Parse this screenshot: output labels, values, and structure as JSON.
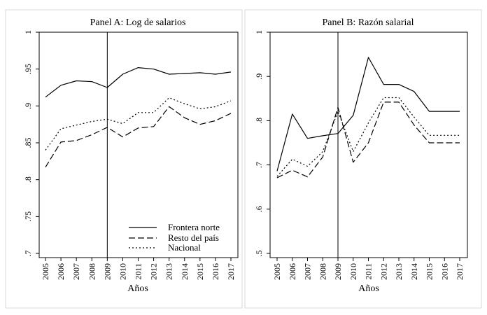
{
  "chart_data": [
    {
      "type": "line",
      "title": "Panel A: Log de salarios",
      "xlabel": "Años",
      "ylabel": "",
      "x": [
        "2005",
        "2006",
        "2007",
        "2008",
        "2009",
        "2010",
        "2011",
        "2012",
        "2013",
        "2014",
        "2015",
        "2016",
        "2017"
      ],
      "yticks": [
        ".7",
        ".75",
        ".8",
        ".85",
        ".9",
        ".95",
        "1"
      ],
      "ylim": [
        0.7,
        1.0
      ],
      "vline_x": "2009",
      "legend_position": "bottom-right",
      "series": [
        {
          "name": "Frontera norte",
          "style": "solid",
          "values": [
            0.912,
            0.928,
            0.934,
            0.933,
            0.925,
            0.943,
            0.952,
            0.95,
            0.943,
            0.944,
            0.945,
            0.943,
            0.946
          ]
        },
        {
          "name": "Resto del país",
          "style": "dashed",
          "values": [
            0.817,
            0.851,
            0.853,
            0.861,
            0.871,
            0.858,
            0.87,
            0.872,
            0.899,
            0.884,
            0.875,
            0.88,
            0.89
          ]
        },
        {
          "name": "Nacional",
          "style": "dotted",
          "values": [
            0.84,
            0.869,
            0.874,
            0.879,
            0.882,
            0.876,
            0.891,
            0.891,
            0.911,
            0.903,
            0.896,
            0.899,
            0.907
          ]
        }
      ]
    },
    {
      "type": "line",
      "title": "Panel B: Razón salarial",
      "xlabel": "Años",
      "ylabel": "",
      "x": [
        "2005",
        "2006",
        "2007",
        "2008",
        "2009",
        "2010",
        "2011",
        "2012",
        "2013",
        "2014",
        "2015",
        "2016",
        "2017"
      ],
      "yticks": [
        ".5",
        ".6",
        ".7",
        ".8",
        ".9",
        "1"
      ],
      "ylim": [
        0.5,
        1.0
      ],
      "vline_x": "2009",
      "series": [
        {
          "name": "Frontera norte",
          "style": "solid",
          "values": [
            0.686,
            0.815,
            0.76,
            0.766,
            0.771,
            0.812,
            0.943,
            0.882,
            0.882,
            0.866,
            0.821,
            0.821,
            0.821
          ]
        },
        {
          "name": "Resto del país",
          "style": "dashed",
          "values": [
            0.671,
            0.688,
            0.673,
            0.718,
            0.83,
            0.706,
            0.75,
            0.842,
            0.842,
            0.79,
            0.75,
            0.75,
            0.75
          ]
        },
        {
          "name": "Nacional",
          "style": "dotted",
          "values": [
            0.674,
            0.713,
            0.697,
            0.73,
            0.821,
            0.73,
            0.795,
            0.852,
            0.852,
            0.808,
            0.767,
            0.767,
            0.767
          ]
        }
      ]
    }
  ]
}
